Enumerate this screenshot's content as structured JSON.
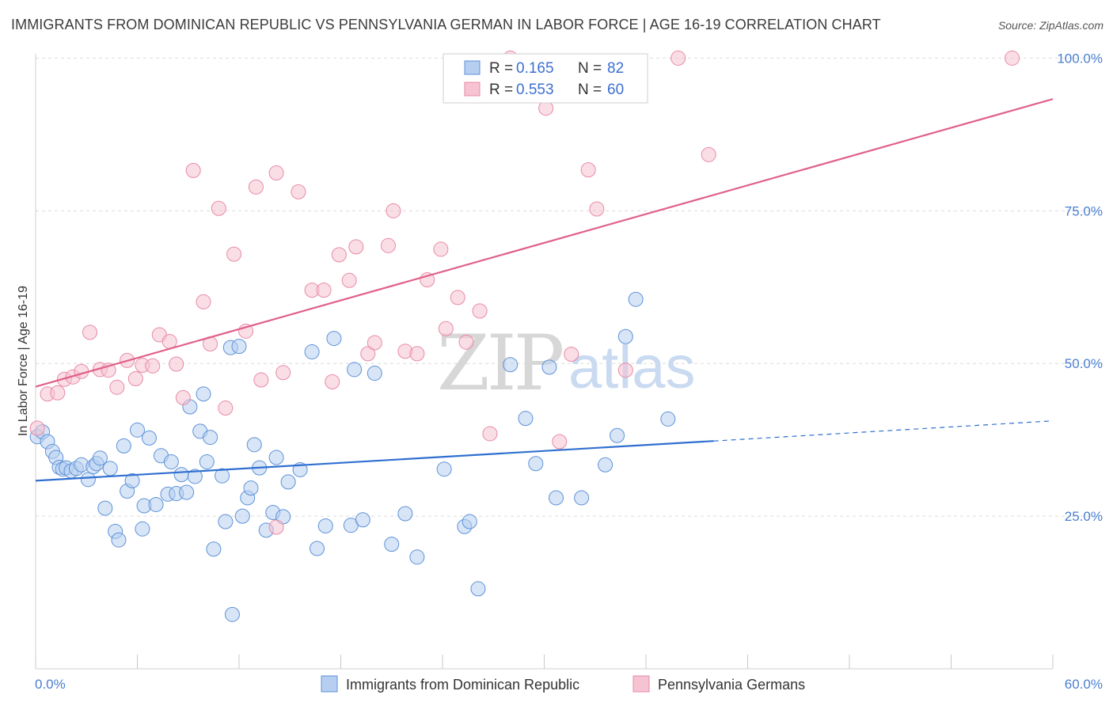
{
  "title": "IMMIGRANTS FROM DOMINICAN REPUBLIC VS PENNSYLVANIA GERMAN IN LABOR FORCE | AGE 16-19 CORRELATION CHART",
  "source": "Source: ZipAtlas.com",
  "watermark": {
    "zip": "ZIP",
    "atlas": "atlas"
  },
  "legend": {
    "r_label": "R =",
    "n_label": "N =",
    "rows": [
      {
        "r": "0.165",
        "n": "82"
      },
      {
        "r": "0.553",
        "n": "60"
      }
    ]
  },
  "colors": {
    "blue_fill": "#b6cff0",
    "blue_stroke": "#5f92d8",
    "blue_line": "#2f6fd0",
    "pink_fill": "#f6c3d2",
    "pink_stroke": "#e88aa6",
    "pink_line": "#e0608a",
    "grid": "#dcdcdc",
    "tick_text": "#4a7fd0"
  },
  "chart_data": {
    "type": "scatter",
    "title": "IMMIGRANTS FROM DOMINICAN REPUBLIC VS PENNSYLVANIA GERMAN IN LABOR FORCE | AGE 16-19 CORRELATION CHART",
    "xlabel": "",
    "ylabel": "In Labor Force | Age 16-19",
    "xlim": [
      0,
      60
    ],
    "ylim": [
      0,
      102
    ],
    "x_tick_labels": [
      "0.0%",
      "60.0%"
    ],
    "y_ticks": [
      25,
      50,
      75,
      100
    ],
    "y_tick_labels": [
      "25.0%",
      "50.0%",
      "75.0%",
      "100.0%"
    ],
    "grid": true,
    "legend_position": "top-center",
    "series": [
      {
        "name": "Immigrants from Dominican Republic",
        "color": "blue",
        "r": 0.165,
        "n": 82,
        "trend": {
          "x0": 0,
          "y0": 30.8,
          "x1": 40,
          "y1": 37.3,
          "dash_x1": 60,
          "dash_y1": 40.6
        },
        "points": [
          [
            0.1,
            38.0
          ],
          [
            0.4,
            38.8
          ],
          [
            0.7,
            37.2
          ],
          [
            1.0,
            35.6
          ],
          [
            1.2,
            34.6
          ],
          [
            1.4,
            33.0
          ],
          [
            1.6,
            32.7
          ],
          [
            1.8,
            32.9
          ],
          [
            2.1,
            32.4
          ],
          [
            2.4,
            32.8
          ],
          [
            2.7,
            33.4
          ],
          [
            3.1,
            31.0
          ],
          [
            3.4,
            33.1
          ],
          [
            3.6,
            33.6
          ],
          [
            3.8,
            34.5
          ],
          [
            4.1,
            26.3
          ],
          [
            4.4,
            32.8
          ],
          [
            4.7,
            22.5
          ],
          [
            4.9,
            21.1
          ],
          [
            5.2,
            36.5
          ],
          [
            5.4,
            29.1
          ],
          [
            5.7,
            30.8
          ],
          [
            6.0,
            39.1
          ],
          [
            6.3,
            22.9
          ],
          [
            6.4,
            26.7
          ],
          [
            6.7,
            37.8
          ],
          [
            7.1,
            26.9
          ],
          [
            7.4,
            34.9
          ],
          [
            7.8,
            28.6
          ],
          [
            8.0,
            33.9
          ],
          [
            8.3,
            28.7
          ],
          [
            8.6,
            31.8
          ],
          [
            8.9,
            28.9
          ],
          [
            9.1,
            42.9
          ],
          [
            9.4,
            31.5
          ],
          [
            9.7,
            38.9
          ],
          [
            9.9,
            45.0
          ],
          [
            10.1,
            33.9
          ],
          [
            10.3,
            37.9
          ],
          [
            10.5,
            19.6
          ],
          [
            11.0,
            31.6
          ],
          [
            11.2,
            24.1
          ],
          [
            11.5,
            52.6
          ],
          [
            11.6,
            8.9
          ],
          [
            12.0,
            52.8
          ],
          [
            12.2,
            25.0
          ],
          [
            12.5,
            28.0
          ],
          [
            12.7,
            29.6
          ],
          [
            12.9,
            36.7
          ],
          [
            13.2,
            32.9
          ],
          [
            13.6,
            22.7
          ],
          [
            14.0,
            25.6
          ],
          [
            14.2,
            34.6
          ],
          [
            14.6,
            24.9
          ],
          [
            14.9,
            30.6
          ],
          [
            15.6,
            32.6
          ],
          [
            16.3,
            51.9
          ],
          [
            16.6,
            19.7
          ],
          [
            17.1,
            23.4
          ],
          [
            17.6,
            54.1
          ],
          [
            18.6,
            23.5
          ],
          [
            18.8,
            49.0
          ],
          [
            19.3,
            24.4
          ],
          [
            20.0,
            48.4
          ],
          [
            21.0,
            20.4
          ],
          [
            21.8,
            25.4
          ],
          [
            22.5,
            18.3
          ],
          [
            24.1,
            32.7
          ],
          [
            25.3,
            23.3
          ],
          [
            25.6,
            24.1
          ],
          [
            26.1,
            13.1
          ],
          [
            28.0,
            49.8
          ],
          [
            28.9,
            41.0
          ],
          [
            29.5,
            33.6
          ],
          [
            30.3,
            49.4
          ],
          [
            30.7,
            28.0
          ],
          [
            32.2,
            28.0
          ],
          [
            33.6,
            33.4
          ],
          [
            34.3,
            38.2
          ],
          [
            34.8,
            54.4
          ],
          [
            35.4,
            60.5
          ],
          [
            37.3,
            40.9
          ]
        ]
      },
      {
        "name": "Pennsylvania Germans",
        "color": "pink",
        "r": 0.553,
        "n": 60,
        "trend": {
          "x0": 0,
          "y0": 46.2,
          "x1": 60,
          "y1": 93.3
        },
        "points": [
          [
            0.1,
            39.4
          ],
          [
            0.7,
            45.0
          ],
          [
            1.3,
            45.2
          ],
          [
            1.7,
            47.4
          ],
          [
            2.2,
            47.8
          ],
          [
            2.7,
            48.7
          ],
          [
            3.2,
            55.1
          ],
          [
            3.8,
            49.0
          ],
          [
            4.3,
            48.9
          ],
          [
            4.8,
            46.1
          ],
          [
            5.4,
            50.5
          ],
          [
            5.9,
            47.5
          ],
          [
            6.3,
            49.7
          ],
          [
            6.9,
            49.6
          ],
          [
            7.3,
            54.7
          ],
          [
            7.9,
            53.6
          ],
          [
            8.3,
            49.9
          ],
          [
            8.7,
            44.4
          ],
          [
            9.3,
            81.6
          ],
          [
            9.9,
            60.1
          ],
          [
            10.3,
            53.2
          ],
          [
            10.8,
            75.4
          ],
          [
            11.2,
            42.7
          ],
          [
            11.7,
            67.9
          ],
          [
            12.4,
            55.3
          ],
          [
            13.0,
            78.9
          ],
          [
            13.3,
            47.3
          ],
          [
            14.2,
            81.2
          ],
          [
            14.6,
            48.5
          ],
          [
            15.5,
            78.1
          ],
          [
            16.3,
            62.0
          ],
          [
            17.0,
            62.0
          ],
          [
            17.5,
            47.0
          ],
          [
            17.9,
            67.8
          ],
          [
            18.5,
            63.6
          ],
          [
            18.9,
            69.1
          ],
          [
            19.6,
            51.6
          ],
          [
            20.0,
            53.4
          ],
          [
            20.8,
            69.3
          ],
          [
            21.1,
            75.0
          ],
          [
            21.8,
            52.0
          ],
          [
            22.5,
            51.6
          ],
          [
            23.1,
            63.7
          ],
          [
            23.9,
            68.7
          ],
          [
            24.2,
            55.7
          ],
          [
            24.9,
            60.8
          ],
          [
            25.4,
            53.5
          ],
          [
            26.2,
            58.6
          ],
          [
            26.8,
            38.5
          ],
          [
            28.0,
            100.0
          ],
          [
            30.1,
            91.8
          ],
          [
            30.9,
            37.2
          ],
          [
            31.6,
            51.5
          ],
          [
            32.6,
            81.7
          ],
          [
            33.1,
            75.3
          ],
          [
            34.8,
            48.9
          ],
          [
            37.9,
            100.0
          ],
          [
            39.7,
            84.2
          ],
          [
            57.6,
            100.0
          ],
          [
            14.2,
            23.2
          ]
        ]
      }
    ]
  }
}
